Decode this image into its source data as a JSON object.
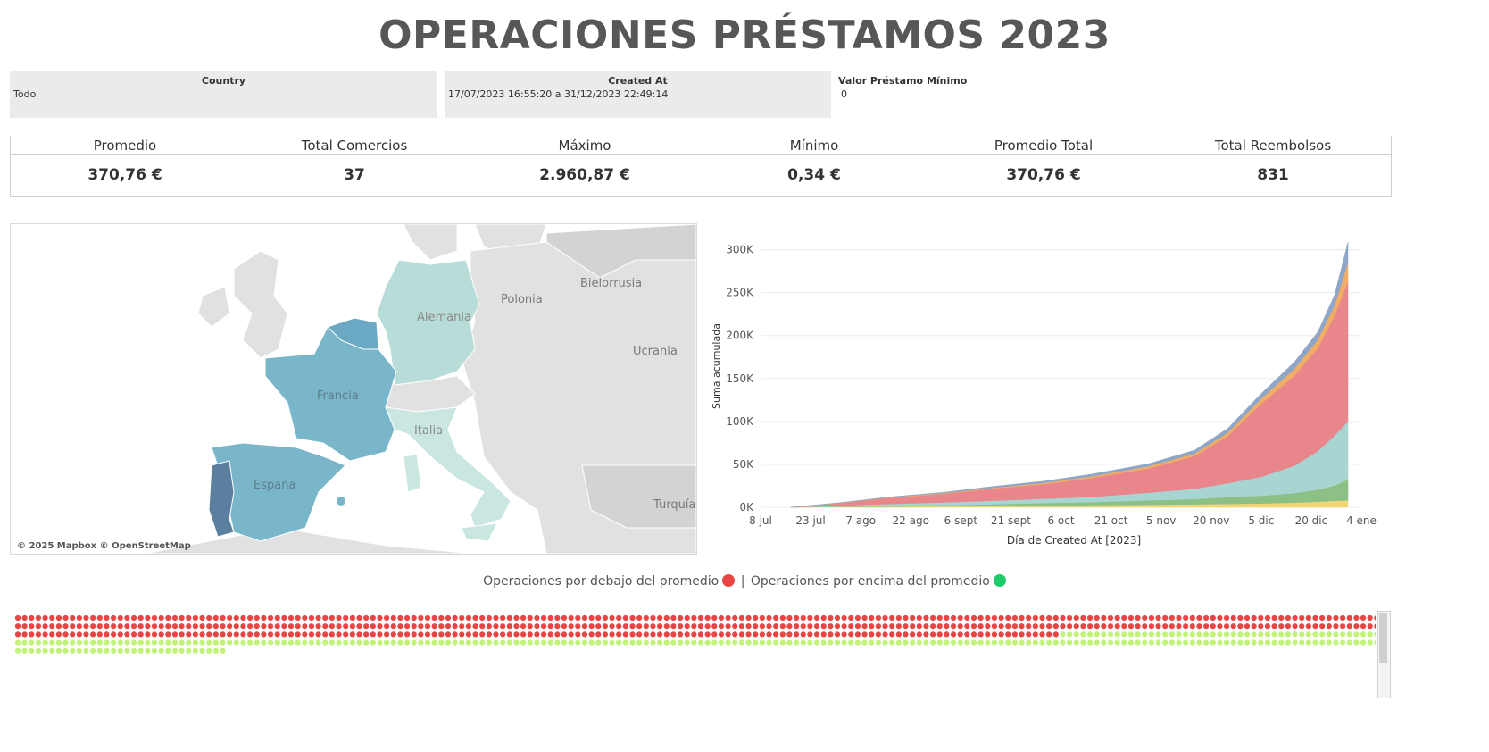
{
  "title": "OPERACIONES PRÉSTAMOS 2023",
  "filters": {
    "country": {
      "label": "Country",
      "value": "Todo"
    },
    "created_at": {
      "label": "Created At",
      "value": "17/07/2023 16:55:20 a 31/12/2023 22:49:14"
    },
    "valor_minimo": {
      "label": "Valor Préstamo Mínimo",
      "value": "0"
    }
  },
  "kpis": [
    {
      "label": "Promedio",
      "value": "370,76 €"
    },
    {
      "label": "Total Comercios",
      "value": "37"
    },
    {
      "label": "Máximo",
      "value": "2.960,87 €"
    },
    {
      "label": "Mínimo",
      "value": "0,34 €"
    },
    {
      "label": "Promedio Total",
      "value": "370,76 €"
    },
    {
      "label": "Total Reembolsos",
      "value": "831"
    }
  ],
  "map": {
    "labels": {
      "alemania": "Alemania",
      "francia": "Francia",
      "italia": "Italia",
      "espana": "España",
      "polonia": "Polonia",
      "bielorrusia": "Bielorrusia",
      "ucrania": "Ucrania",
      "turquia": "Turquía"
    },
    "attribution": "© 2025 Mapbox © OpenStreetMap",
    "colors": {
      "portugal": "#5b7f9f",
      "belgica": "#6aa8c4",
      "francia": "#7ab6c9",
      "espana": "#7ab6c9",
      "alemania": "#b8ddd8",
      "italia": "#c9e6e0",
      "base_land": "#e1e1e1",
      "highlight_land": "#d3d3d3",
      "sea": "#ffffff"
    }
  },
  "chart_data": {
    "type": "area",
    "stacked": true,
    "xlabel": "Día de Created At [2023]",
    "ylabel": "Suma acumulada",
    "x_tick_labels": [
      "8 jul",
      "23 jul",
      "7 ago",
      "22 ago",
      "6 sept",
      "21 sept",
      "6 oct",
      "21 oct",
      "5 nov",
      "20 nov",
      "5 dic",
      "20 dic",
      "4 ene"
    ],
    "y_tick_labels": [
      "0K",
      "50K",
      "100K",
      "150K",
      "200K",
      "250K",
      "300K"
    ],
    "ylim": [
      0,
      310000
    ],
    "x_dates": [
      "2023-07-17",
      "2023-08-01",
      "2023-08-15",
      "2023-09-01",
      "2023-09-15",
      "2023-10-01",
      "2023-10-15",
      "2023-11-01",
      "2023-11-15",
      "2023-11-25",
      "2023-12-05",
      "2023-12-15",
      "2023-12-22",
      "2023-12-27",
      "2023-12-31"
    ],
    "series": [
      {
        "color": "#f2d675",
        "values": [
          0,
          500,
          800,
          1200,
          1500,
          2000,
          2500,
          3000,
          3500,
          4000,
          4500,
          5500,
          6500,
          7500,
          8000
        ]
      },
      {
        "color": "#8cc084",
        "values": [
          0,
          500,
          1000,
          1500,
          2000,
          3000,
          3500,
          5000,
          6000,
          8000,
          9000,
          11000,
          14000,
          18000,
          24000
        ]
      },
      {
        "color": "#a8d5d1",
        "values": [
          0,
          1000,
          2000,
          3000,
          4000,
          5000,
          6000,
          9000,
          12000,
          16000,
          22000,
          32000,
          45000,
          58000,
          68000
        ]
      },
      {
        "color": "#e8868b",
        "values": [
          0,
          3000,
          7000,
          10000,
          14000,
          17000,
          22000,
          28000,
          38000,
          55000,
          85000,
          105000,
          120000,
          140000,
          163000
        ]
      },
      {
        "color": "#f0ad66",
        "values": [
          0,
          200,
          500,
          800,
          1000,
          1500,
          2000,
          2500,
          3000,
          4000,
          6000,
          8000,
          10000,
          12000,
          22000
        ]
      },
      {
        "color": "#8fa6c8",
        "values": [
          0,
          300,
          600,
          1000,
          1500,
          2000,
          2500,
          3000,
          4000,
          5000,
          6000,
          8000,
          9000,
          12000,
          24000
        ]
      }
    ]
  },
  "legend": {
    "below": "Operaciones por debajo del promedio",
    "separator": "|",
    "above": "Operaciones por encima del promedio",
    "below_color": "#e84545",
    "above_color": "#1dcb6b"
  },
  "dot_grid": {
    "red_count": 553,
    "green_count": 278,
    "red_color": "#e84545",
    "green_color": "#c2f27a"
  }
}
